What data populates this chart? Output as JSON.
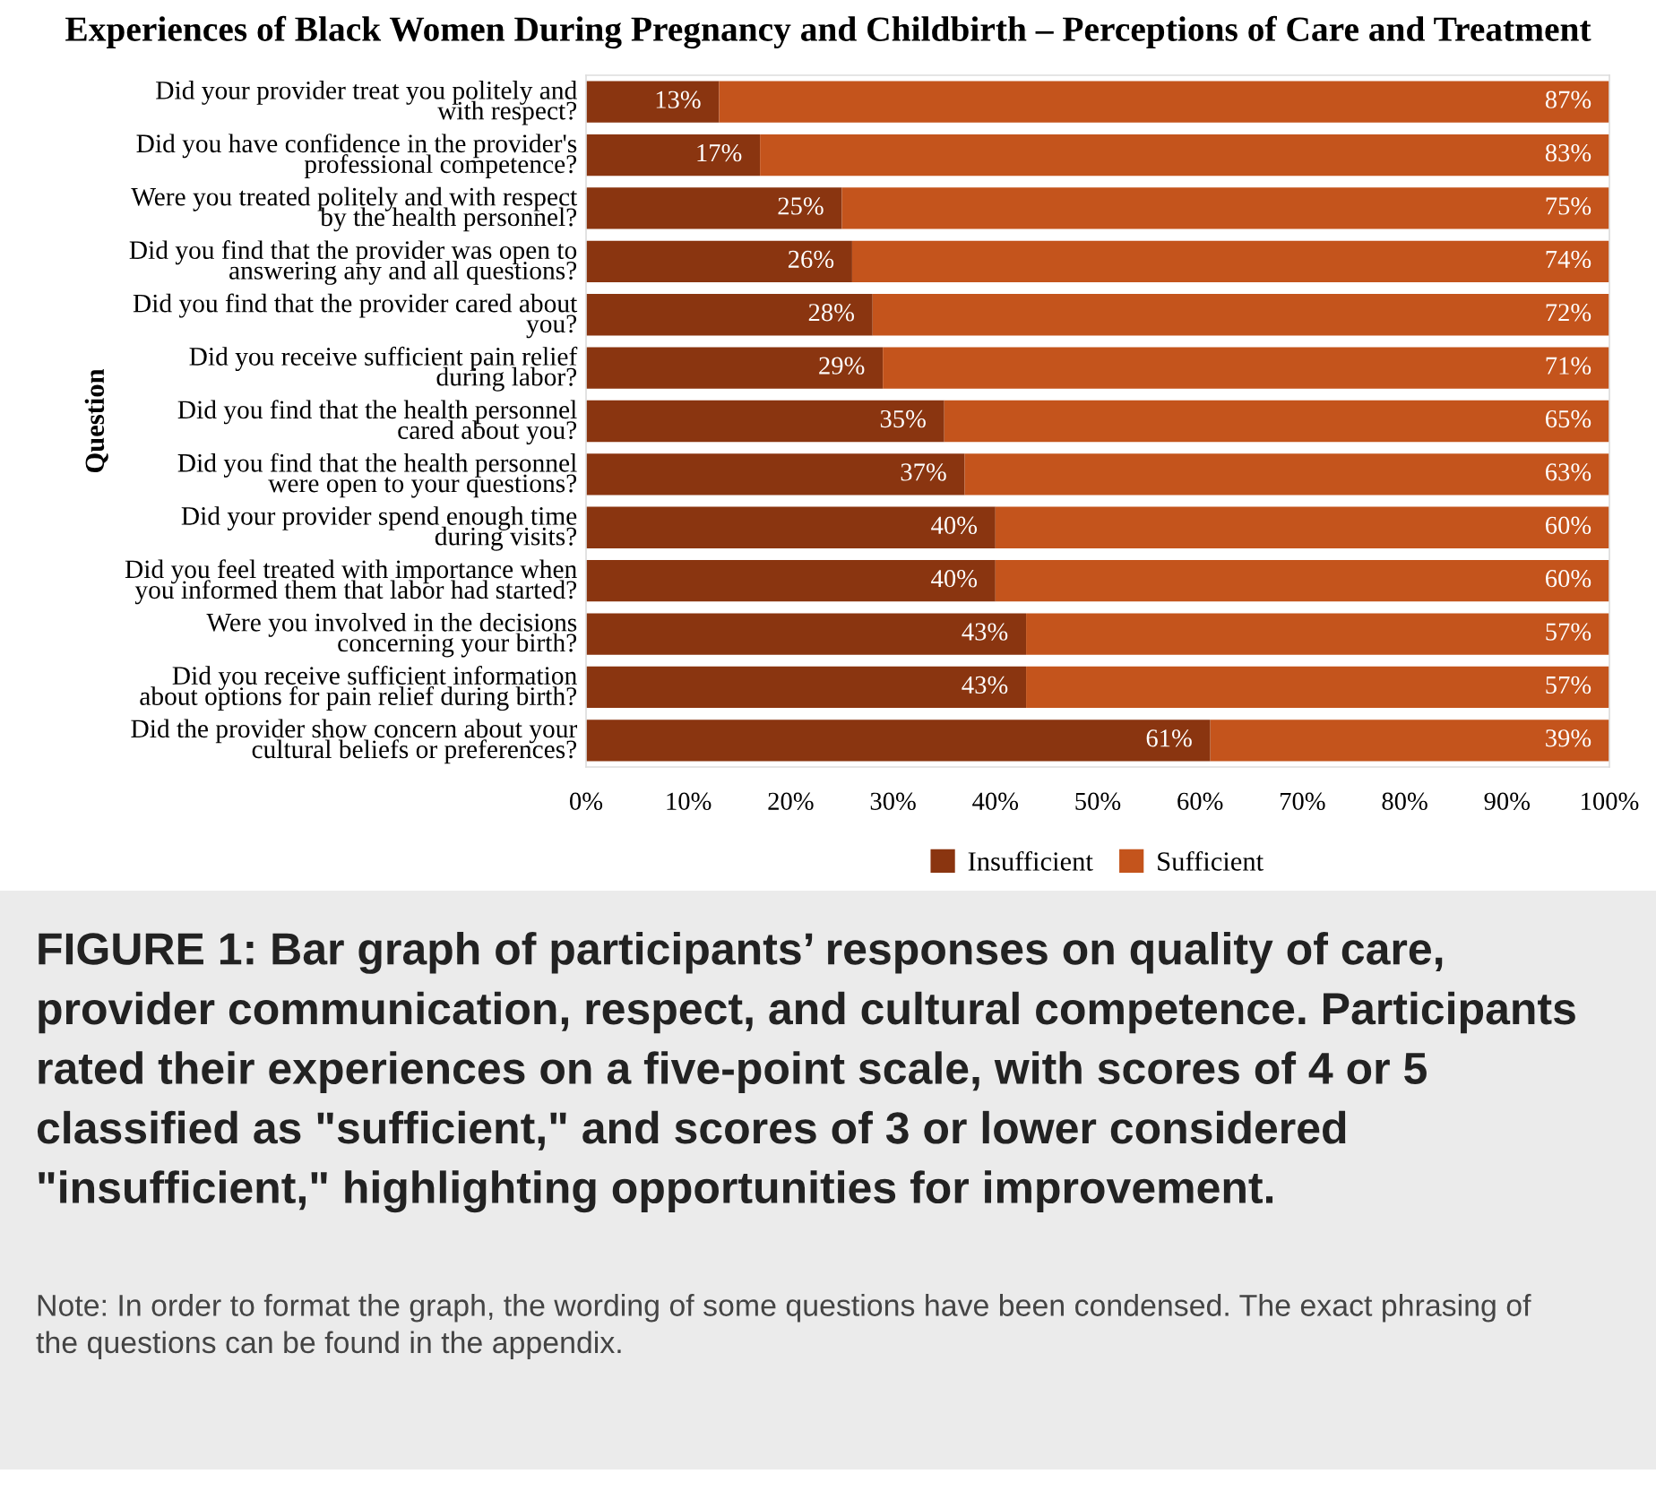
{
  "chart_data": {
    "type": "bar",
    "orientation": "horizontal",
    "stacked": true,
    "title": "Experiences of Black Women During Pregnancy and Childbirth – Perceptions of Care and Treatment",
    "ylabel": "Question",
    "categories": [
      "Did your provider treat you politely and\nwith respect?",
      "Did you have confidence in the provider's\nprofessional competence?",
      "Were you treated politely and with respect\nby the health personnel?",
      "Did you find that the provider was open to\nanswering any and all questions?",
      "Did you find that the provider cared about\nyou?",
      "Did you receive sufficient pain relief\nduring labor?",
      "Did you find that the health personnel\ncared about you?",
      "Did you find that the health personnel\nwere open to your questions?",
      "Did your provider spend enough time\nduring visits?",
      "Did you feel treated with importance when\nyou informed them that labor had started?",
      "Were you involved in the decisions\nconcerning your birth?",
      "Did you receive sufficient information\nabout options for pain relief during birth?",
      "Did the provider show concern about your\ncultural beliefs or preferences?"
    ],
    "series": [
      {
        "name": "Insufficient",
        "color": "#8a3510",
        "values": [
          13,
          17,
          25,
          26,
          28,
          29,
          35,
          37,
          40,
          40,
          43,
          43,
          61
        ],
        "value_labels": [
          "13%",
          "17%",
          "25%",
          "26%",
          "28%",
          "29%",
          "35%",
          "37%",
          "40%",
          "40%",
          "43%",
          "43%",
          "61%"
        ]
      },
      {
        "name": "Sufficient",
        "color": "#c4541c",
        "values": [
          87,
          83,
          75,
          74,
          72,
          71,
          65,
          63,
          60,
          60,
          57,
          57,
          39
        ],
        "value_labels": [
          "87%",
          "83%",
          "75%",
          "74%",
          "72%",
          "71%",
          "65%",
          "63%",
          "60%",
          "60%",
          "57%",
          "57%",
          "39%"
        ]
      }
    ],
    "xlim": [
      0,
      100
    ],
    "xticks": [
      {
        "value": 0,
        "label": "0%"
      },
      {
        "value": 10,
        "label": "10%"
      },
      {
        "value": 20,
        "label": "20%"
      },
      {
        "value": 30,
        "label": "30%"
      },
      {
        "value": 40,
        "label": "40%"
      },
      {
        "value": 50,
        "label": "50%"
      },
      {
        "value": 60,
        "label": "60%"
      },
      {
        "value": 70,
        "label": "70%"
      },
      {
        "value": 80,
        "label": "80%"
      },
      {
        "value": 90,
        "label": "90%"
      },
      {
        "value": 100,
        "label": "100%"
      }
    ],
    "legend": "bottom",
    "annotations": [
      "FIGURE 1: Bar graph of participants’ responses on quality of care,\nprovider communication, respect, and cultural competence. Participants\nrated their experiences on a five-point scale, with scores of 4 or 5\nclassified as \"sufficient,\" and scores of 3 or lower considered\n\"insufficient,\" highlighting opportunities for improvement.",
      "Note: In order to format the graph, the wording of some questions have been condensed. The exact phrasing of\nthe questions can be found in the appendix."
    ]
  }
}
